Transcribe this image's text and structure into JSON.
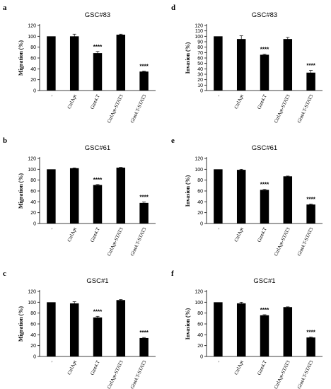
{
  "chart_data": [
    {
      "panel": "a",
      "type": "bar",
      "title": "GSC#83",
      "ylabel": "Migration (%)",
      "categories": [
        "-",
        "CtrlApt",
        "Gint4.T",
        "CtrlApt-STAT3",
        "Gint4.T-STAT3"
      ],
      "values": [
        100,
        100,
        69,
        103,
        35
      ],
      "errors": [
        0,
        4,
        3,
        1,
        1
      ],
      "annotations": [
        "",
        "",
        "****",
        "",
        "****"
      ],
      "ylim": [
        0,
        120
      ],
      "yticks": [
        0,
        20,
        40,
        60,
        80,
        100,
        120
      ]
    },
    {
      "panel": "d",
      "type": "bar",
      "title": "GSC#83",
      "ylabel": "Invasion (%)",
      "categories": [
        "-",
        "CtrlApt",
        "Gint4.T",
        "CtrlApt-STAT3",
        "Gint4.T-STAT3"
      ],
      "values": [
        100,
        95,
        66,
        95,
        33
      ],
      "errors": [
        0,
        6,
        1,
        3,
        4
      ],
      "annotations": [
        "",
        "",
        "****",
        "",
        "****"
      ],
      "ylim": [
        0,
        120
      ],
      "yticks": [
        0,
        10,
        20,
        30,
        40,
        50,
        60,
        70,
        80,
        90,
        100,
        110,
        120
      ]
    },
    {
      "panel": "b",
      "type": "bar",
      "title": "GSC#61",
      "ylabel": "Migration (%)",
      "categories": [
        "-",
        "CtrlApt",
        "Gint4.T",
        "CtrlApt-STAT3",
        "Gint4.T-STAT3"
      ],
      "values": [
        100,
        102,
        71,
        103,
        38
      ],
      "errors": [
        0,
        0.5,
        1,
        0.5,
        1.5
      ],
      "annotations": [
        "",
        "",
        "****",
        "",
        "****"
      ],
      "ylim": [
        0,
        120
      ],
      "yticks": [
        0,
        20,
        40,
        60,
        80,
        100,
        120
      ]
    },
    {
      "panel": "e",
      "type": "bar",
      "title": "GSC#61",
      "ylabel": "Invasion (%)",
      "categories": [
        "-",
        "CtrlApt",
        "Gint4.T",
        "CtrlApt-STAT3",
        "Gint4.T-STAT3"
      ],
      "values": [
        100,
        99,
        62,
        87,
        35
      ],
      "errors": [
        0,
        1,
        1,
        0.5,
        1
      ],
      "annotations": [
        "",
        "",
        "****",
        "",
        "****"
      ],
      "ylim": [
        0,
        120
      ],
      "yticks": [
        0,
        20,
        40,
        60,
        80,
        100,
        120
      ]
    },
    {
      "panel": "c",
      "type": "bar",
      "title": "GSC#1",
      "ylabel": "Migration (%)",
      "categories": [
        "-",
        "CtrlApt",
        "Gint4.T",
        "CtrlApt-STAT3",
        "Gint4.T-STAT3"
      ],
      "values": [
        100,
        98,
        72,
        104,
        34
      ],
      "errors": [
        0,
        3,
        2,
        1,
        1
      ],
      "annotations": [
        "",
        "",
        "****",
        "",
        "****"
      ],
      "ylim": [
        0,
        120
      ],
      "yticks": [
        0,
        20,
        40,
        60,
        80,
        100,
        120
      ]
    },
    {
      "panel": "f",
      "type": "bar",
      "title": "GSC#1",
      "ylabel": "Invasion (%)",
      "categories": [
        "-",
        "CtrlApt",
        "Gint4.T",
        "CtrlApt-STAT3",
        "Gint4.T-STAT3"
      ],
      "values": [
        100,
        98,
        76,
        91,
        35
      ],
      "errors": [
        0,
        2,
        1,
        0.5,
        1
      ],
      "annotations": [
        "",
        "",
        "****",
        "",
        "****"
      ],
      "ylim": [
        0,
        120
      ],
      "yticks": [
        0,
        20,
        40,
        60,
        80,
        100,
        120
      ]
    }
  ]
}
